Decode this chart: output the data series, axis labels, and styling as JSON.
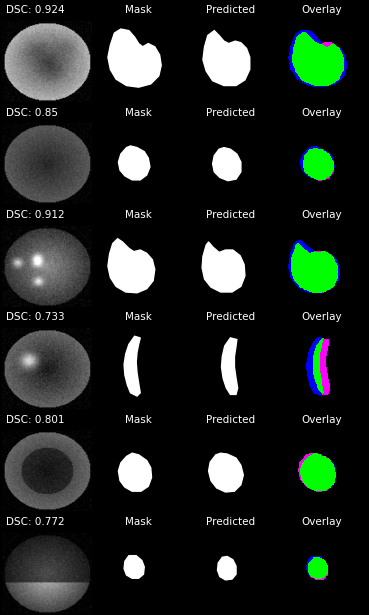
{
  "rows": [
    {
      "dsc": "DSC: 0.924"
    },
    {
      "dsc": "DSC: 0.85"
    },
    {
      "dsc": "DSC: 0.912"
    },
    {
      "dsc": "DSC: 0.733"
    },
    {
      "dsc": "DSC: 0.801"
    },
    {
      "dsc": "DSC: 0.772"
    }
  ],
  "col_labels": [
    "Mask",
    "Predicted",
    "Overlay"
  ],
  "background_color": "#000000",
  "text_color": "#ffffff",
  "figsize": [
    3.69,
    6.15
  ],
  "dpi": 100
}
